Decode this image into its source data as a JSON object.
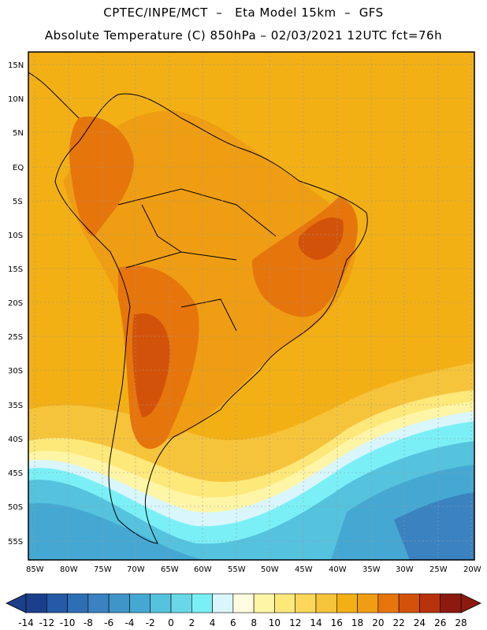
{
  "header": {
    "line1": "CPTEC/INPE/MCT  –   Eta Model 15km  –  GFS",
    "line2": "Absolute Temperature (C) 850hPa – 02/03/2021 12UTC fct=76h"
  },
  "axes": {
    "lat_labels": [
      "15N",
      "10N",
      "5N",
      "EQ",
      "5S",
      "10S",
      "15S",
      "20S",
      "25S",
      "30S",
      "35S",
      "40S",
      "45S",
      "50S",
      "55S"
    ],
    "lon_labels": [
      "85W",
      "80W",
      "75W",
      "70W",
      "65W",
      "60W",
      "55W",
      "50W",
      "45W",
      "40W",
      "35W",
      "30W",
      "25W",
      "20W"
    ]
  },
  "colorbar": {
    "labels": [
      "-14",
      "-12",
      "-10",
      "-8",
      "-6",
      "-4",
      "-2",
      "0",
      "2",
      "4",
      "6",
      "8",
      "10",
      "12",
      "14",
      "16",
      "18",
      "20",
      "22",
      "24",
      "26",
      "28"
    ],
    "colors": [
      "#1c3f8c",
      "#245aa6",
      "#2e6fb4",
      "#3a82c0",
      "#3f95c8",
      "#45a8d2",
      "#55c2de",
      "#6ad7e6",
      "#7af0f6",
      "#d8f6fb",
      "#fffbe0",
      "#fff5a6",
      "#fde87a",
      "#fbd85b",
      "#f6c43b",
      "#f3b015",
      "#ef9d12",
      "#e6750c",
      "#d3520a",
      "#b8320c",
      "#8c1a0e"
    ]
  },
  "map_colors": {
    "background": "#f3b015",
    "warm": "#ef9d12",
    "hot": "#e6750c",
    "hotter": "#d3520a",
    "mild": "#f6c43b",
    "cool": "#fbd85b",
    "coolish": "#fde87a",
    "pale": "#fff5a6",
    "cyan1": "#d8f6fb",
    "cyan2": "#7af0f6",
    "cyan3": "#55c2de",
    "blue1": "#45a8d2",
    "blue2": "#3a82c0",
    "land_line": "#000000"
  }
}
